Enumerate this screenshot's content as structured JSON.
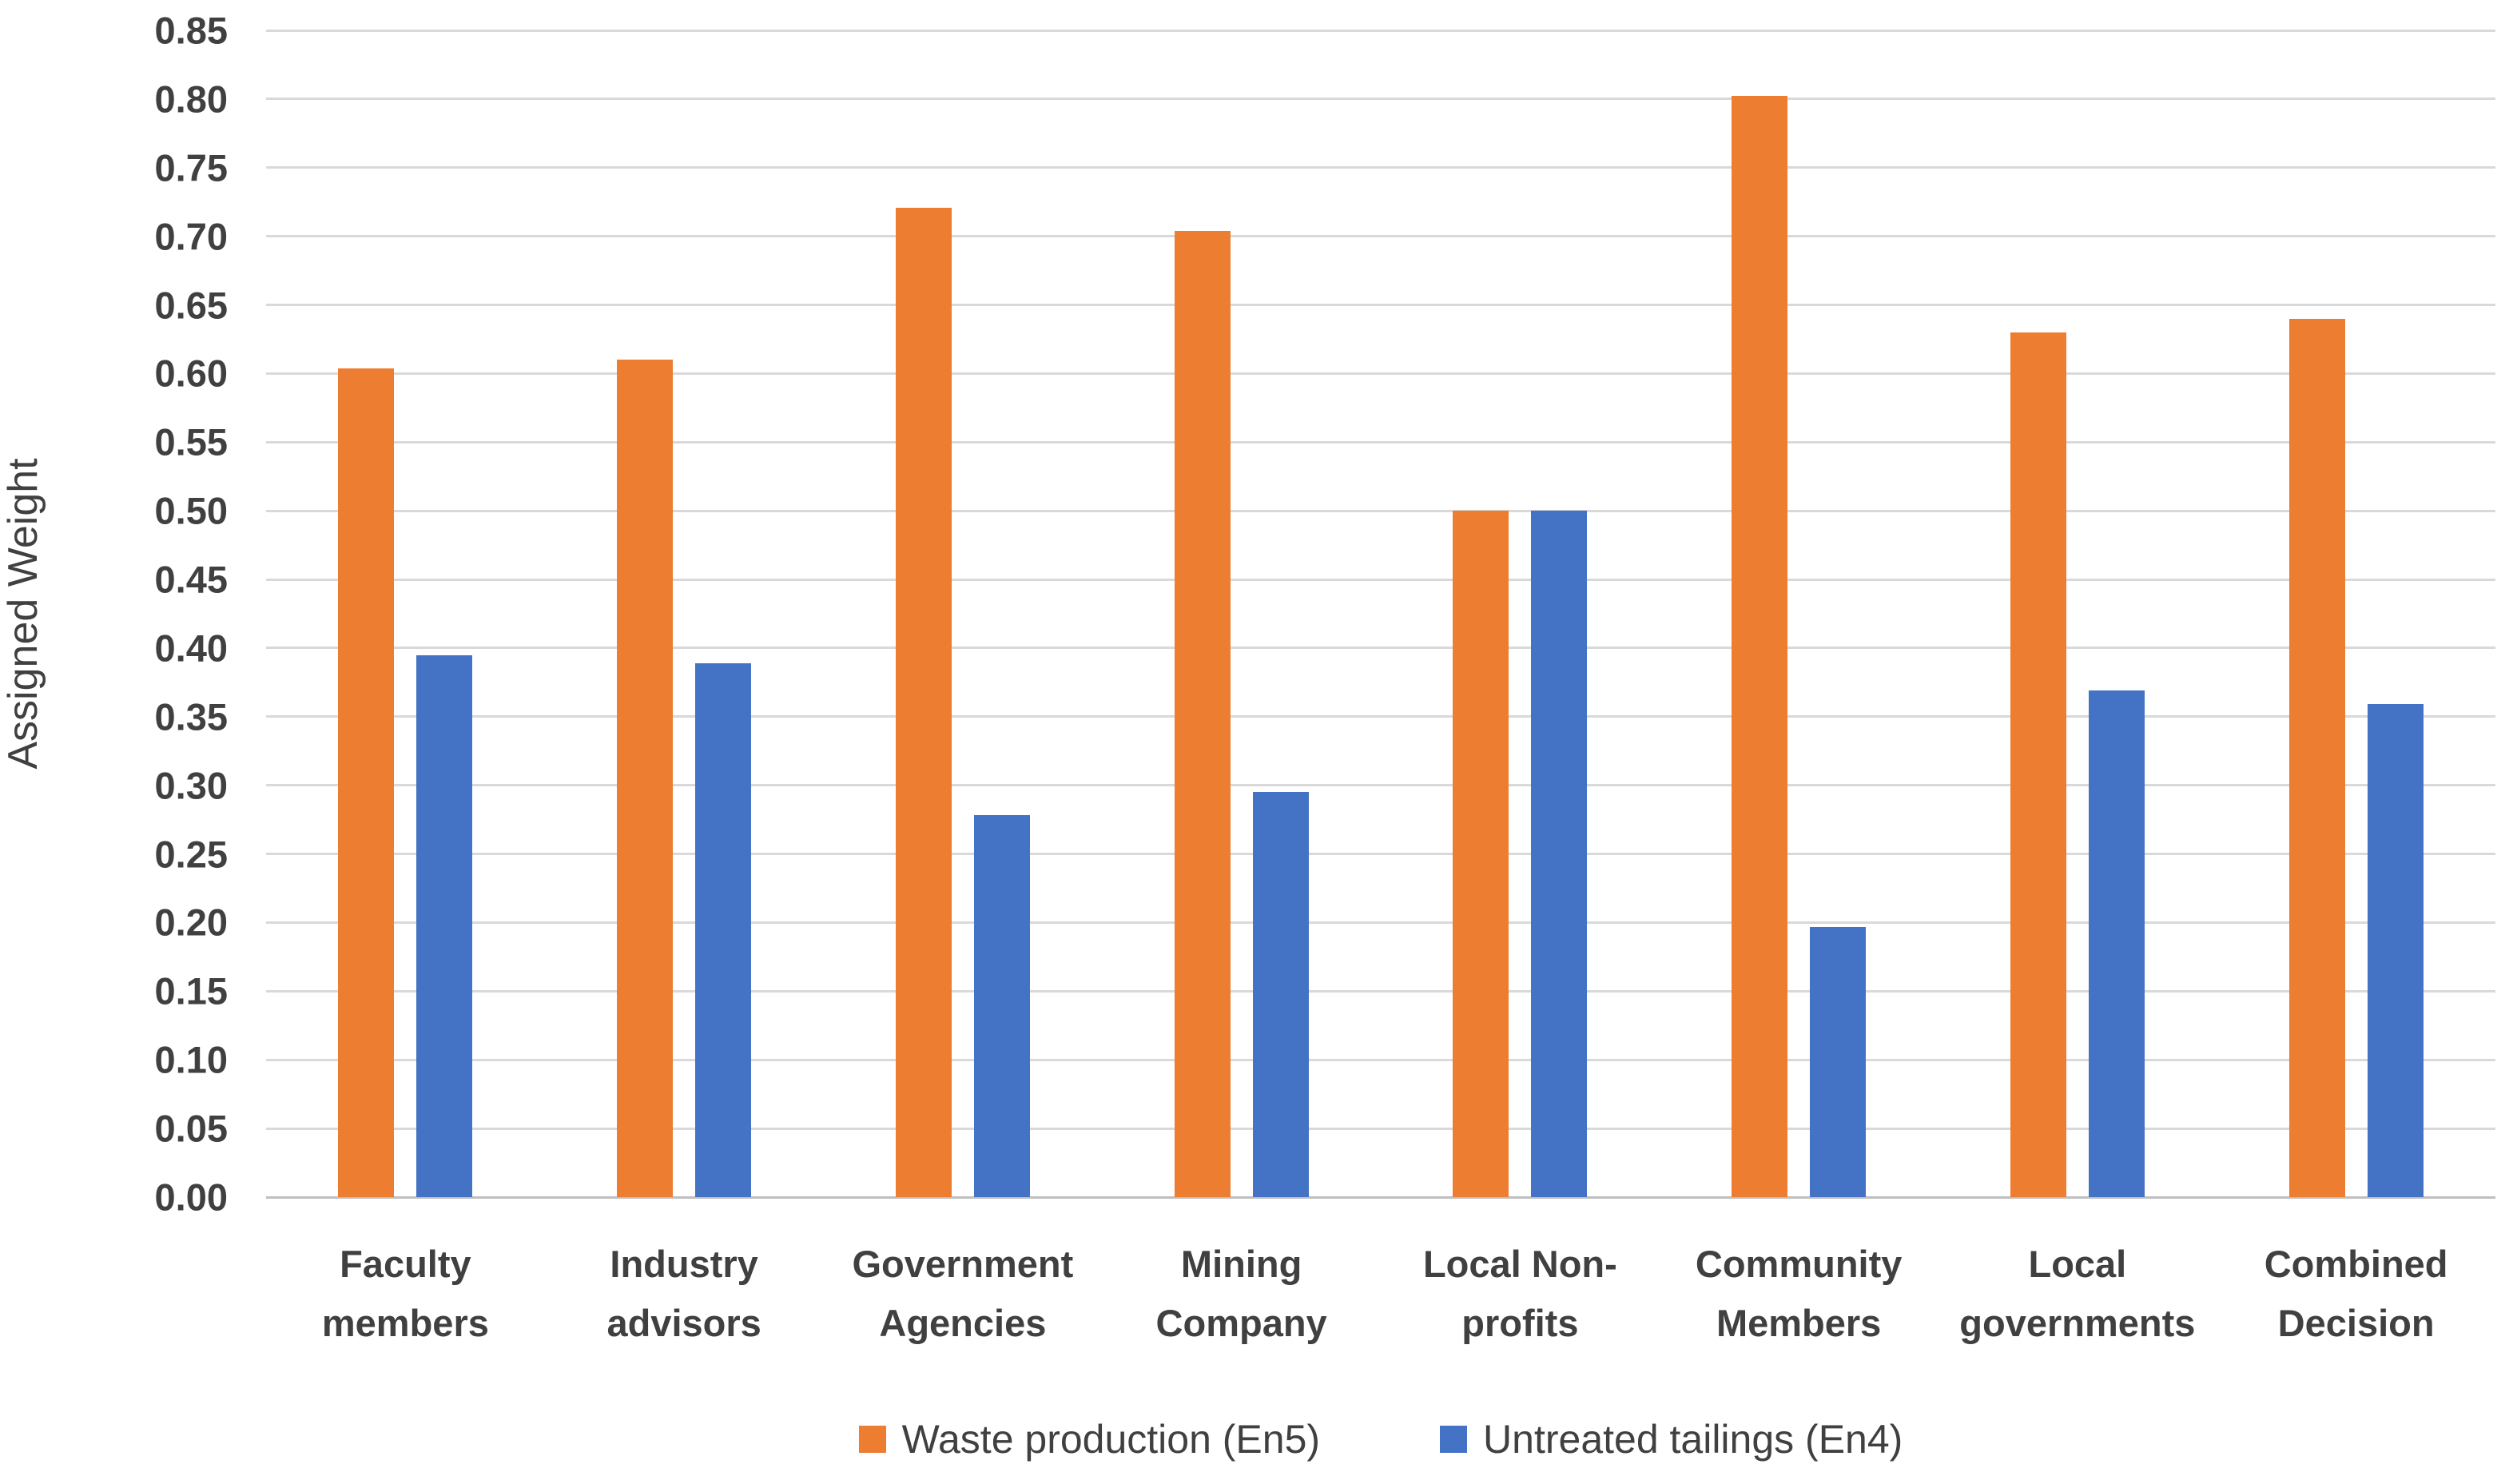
{
  "chart_data": {
    "type": "bar",
    "title": "",
    "xlabel": "",
    "ylabel": "Assigned Weight",
    "ylim": [
      0,
      0.85
    ],
    "ytick_step": 0.05,
    "ytick_labels": [
      "0.00",
      "0.05",
      "0.10",
      "0.15",
      "0.20",
      "0.25",
      "0.30",
      "0.35",
      "0.40",
      "0.45",
      "0.50",
      "0.55",
      "0.60",
      "0.65",
      "0.70",
      "0.75",
      "0.80",
      "0.85"
    ],
    "grid": true,
    "legend_position": "bottom",
    "categories": [
      "Faculty members",
      "Industry advisors",
      "Government Agencies",
      "Mining Company",
      "Local Non-profits",
      "Community Members",
      "Local governments",
      "Combined Decision"
    ],
    "series": [
      {
        "name": "Waste production (En5)",
        "color": "#ED7D31",
        "values": [
          0.604,
          0.61,
          0.721,
          0.704,
          0.5,
          0.802,
          0.63,
          0.64
        ]
      },
      {
        "name": "Untreated tailings (En4)",
        "color": "#4472C4",
        "values": [
          0.395,
          0.389,
          0.278,
          0.295,
          0.5,
          0.197,
          0.369,
          0.359
        ]
      }
    ],
    "colors": {
      "grid": "#D9D9D9",
      "axis_line": "#BFBFBF",
      "text": "#404040"
    }
  }
}
